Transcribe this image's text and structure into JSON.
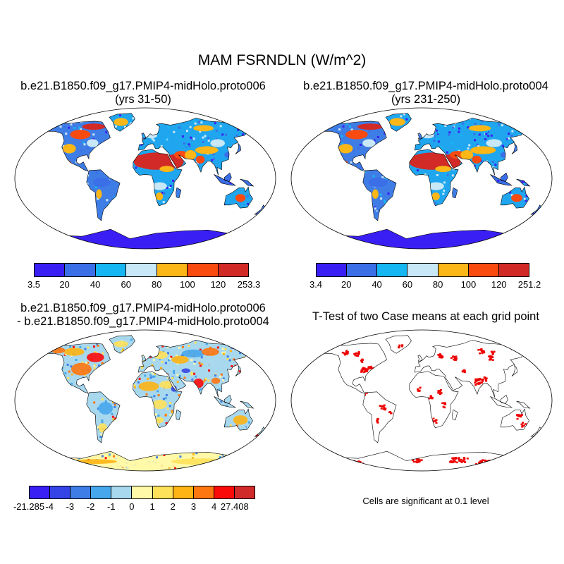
{
  "figure": {
    "title": "MAM FSRNDLN (W/m^2)"
  },
  "panels": {
    "top_left": {
      "title_line1": "b.e21.B1850.f09_g17.PMIP4-midHolo.proto006",
      "title_line2": "(yrs 31-50)",
      "colorbar": {
        "colors": [
          "#3a1ff5",
          "#3a6fe8",
          "#16b6f2",
          "#c8e8f7",
          "#fbb617",
          "#f94a10",
          "#d22a26"
        ],
        "labels": [
          "3.5",
          "20",
          "40",
          "60",
          "80",
          "100",
          "120",
          "253.3"
        ]
      }
    },
    "top_right": {
      "title_line1": "b.e21.B1850.f09_g17.PMIP4-midHolo.proto004",
      "title_line2": "(yrs 231-250)",
      "colorbar": {
        "colors": [
          "#3a1ff5",
          "#3a6fe8",
          "#16b6f2",
          "#c8e8f7",
          "#fbb617",
          "#f94a10",
          "#d22a26"
        ],
        "labels": [
          "3.4",
          "20",
          "40",
          "60",
          "80",
          "100",
          "120",
          "251.2"
        ]
      }
    },
    "bottom_left": {
      "title_line1": "b.e21.B1850.f09_g17.PMIP4-midHolo.proto006",
      "title_line2": "- b.e21.B1850.f09_g17.PMIP4-midHolo.proto004",
      "colorbar": {
        "colors": [
          "#3a1ff5",
          "#3544e6",
          "#3f7de6",
          "#47a7ec",
          "#a8d8ee",
          "#fff9a8",
          "#fde15a",
          "#fdb414",
          "#fd7610",
          "#fb0a0a",
          "#d02a2a"
        ],
        "labels": [
          "-21.285",
          "-4",
          "-3",
          "-2",
          "-1",
          "0",
          "1",
          "2",
          "3",
          "4",
          "27.408"
        ]
      }
    },
    "bottom_right": {
      "title": "T-Test of two Case means at each grid point",
      "note": "Cells are significant at 0.1 level",
      "mark_color": "#ee0000"
    }
  }
}
